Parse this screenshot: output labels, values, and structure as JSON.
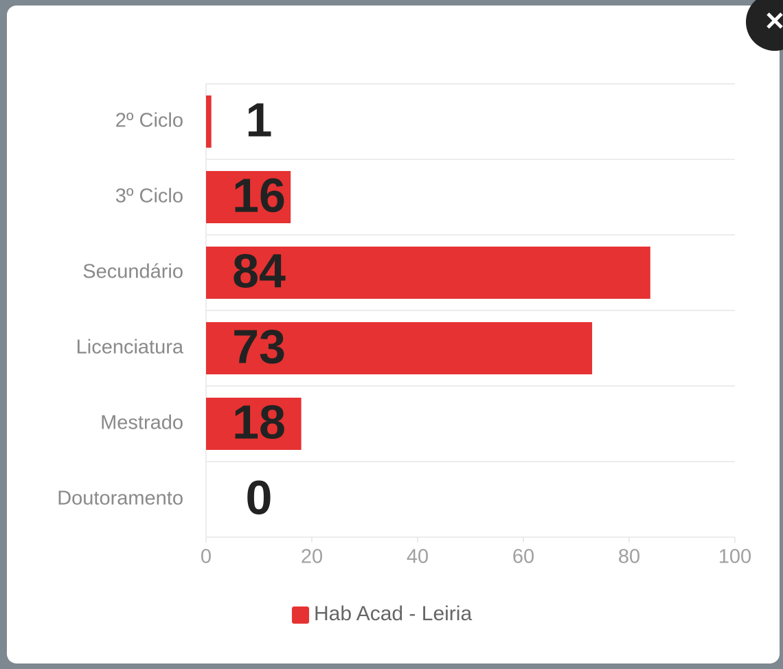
{
  "chart_data": {
    "type": "bar",
    "orientation": "horizontal",
    "categories": [
      "2º Ciclo",
      "3º Ciclo",
      "Secundário",
      "Licenciatura",
      "Mestrado",
      "Doutoramento"
    ],
    "series": [
      {
        "name": "Hab Acad - Leiria",
        "color": "#e63232",
        "values": [
          1,
          16,
          84,
          73,
          18,
          0
        ]
      }
    ],
    "xlim": [
      0,
      100
    ],
    "xticks": [
      0,
      20,
      40,
      60,
      80,
      100
    ],
    "grid": true,
    "legend": "bottom"
  }
}
